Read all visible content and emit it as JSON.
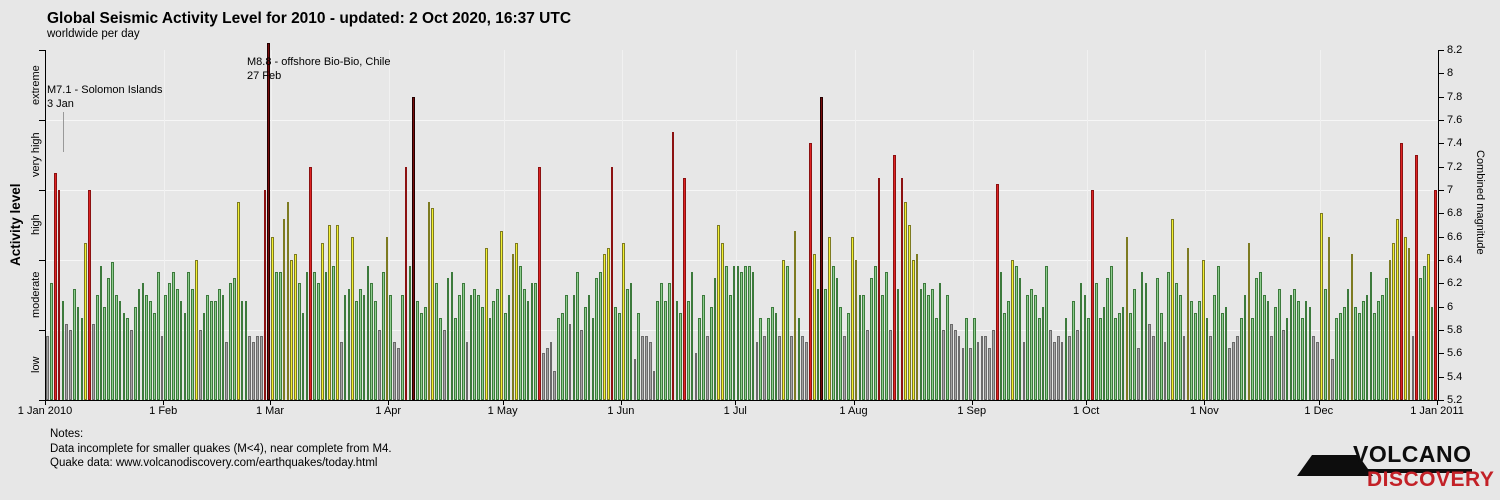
{
  "header": {
    "title": "Global Seismic Activity Level for 2010 - updated:  2 Oct 2020, 16:37 UTC",
    "subtitle": "worldwide per day"
  },
  "notes": {
    "heading": "Notes:",
    "line1": "Data incomplete for smaller quakes (M<4), near complete from M4.",
    "line2": "Quake data: www.volcanodiscovery.com/earthquakes/today.html"
  },
  "logo": {
    "line1": "VOLCANO",
    "line2": "DISCOVERY"
  },
  "chart_data": {
    "type": "bar",
    "title": "Global Seismic Activity Level for 2010",
    "subtitle": "worldwide per day",
    "x_start": "1 Jan 2010",
    "x_end": "1 Jan 2011",
    "x_tick_labels": [
      "1 Jan 2010",
      "1 Feb",
      "1 Mar",
      "1 Apr",
      "1 May",
      "1 Jun",
      "1 Jul",
      "1 Aug",
      "1 Sep",
      "1 Oct",
      "1 Nov",
      "1 Dec",
      "1 Jan 2011"
    ],
    "month_start_days": [
      1,
      32,
      60,
      91,
      121,
      152,
      182,
      213,
      244,
      274,
      305,
      335,
      366
    ],
    "y_right": {
      "label": "Combined magnitude",
      "min": 5.2,
      "max": 8.2,
      "tick_step": 0.2,
      "tick_labels": [
        "8.2",
        "8",
        "7.8",
        "7.6",
        "7.4",
        "7.2",
        "7",
        "6.8",
        "6.6",
        "6.4",
        "6.2",
        "6",
        "5.8",
        "5.6",
        "5.4",
        "5.2"
      ]
    },
    "y_left": {
      "label": "Activity level",
      "categories": [
        {
          "name": "low",
          "range": [
            5.2,
            5.8
          ],
          "color": "#a4a4a4",
          "border": "#6b6b6b"
        },
        {
          "name": "moderate",
          "range": [
            5.8,
            6.4
          ],
          "color": "#8ecd8e",
          "border": "#3c7a3c"
        },
        {
          "name": "high",
          "range": [
            6.4,
            7.0
          ],
          "color": "#f3f032",
          "border": "#7d7b22"
        },
        {
          "name": "very high",
          "range": [
            7.0,
            7.6
          ],
          "color": "#de2323",
          "border": "#8c1111"
        },
        {
          "name": "extreme",
          "range": [
            7.6,
            8.2
          ],
          "color": "#780c0c",
          "border": "#240000"
        }
      ]
    },
    "gridlines_at": [
      5.8,
      6.4,
      7.0,
      7.6
    ],
    "clip_max": 8.26,
    "days": 365,
    "values": [
      5.75,
      6.2,
      7.15,
      7.0,
      6.05,
      5.85,
      5.8,
      6.15,
      6.0,
      5.9,
      6.55,
      7.0,
      5.85,
      6.1,
      6.35,
      6.0,
      6.25,
      6.38,
      6.1,
      6.05,
      5.95,
      5.9,
      5.8,
      6.0,
      6.15,
      6.2,
      6.1,
      6.05,
      5.95,
      6.3,
      5.75,
      6.1,
      6.2,
      6.3,
      6.15,
      6.05,
      5.95,
      6.3,
      6.15,
      6.4,
      5.8,
      5.95,
      6.1,
      6.05,
      6.05,
      6.15,
      6.1,
      5.7,
      6.2,
      6.25,
      6.9,
      6.05,
      6.05,
      5.75,
      5.7,
      5.75,
      5.75,
      7.0,
      8.8,
      6.6,
      6.3,
      6.3,
      6.75,
      6.9,
      6.4,
      6.45,
      6.2,
      5.95,
      6.3,
      7.2,
      6.3,
      6.2,
      6.55,
      6.3,
      6.7,
      6.35,
      6.7,
      5.7,
      6.1,
      6.15,
      6.6,
      6.05,
      6.15,
      6.1,
      6.35,
      6.2,
      6.05,
      5.8,
      6.3,
      6.6,
      6.1,
      5.7,
      5.65,
      6.1,
      7.2,
      6.35,
      7.8,
      6.05,
      5.95,
      6.0,
      6.9,
      6.85,
      6.2,
      5.9,
      5.8,
      6.25,
      6.3,
      5.9,
      6.1,
      6.2,
      5.7,
      6.1,
      6.15,
      6.1,
      6.0,
      6.5,
      5.9,
      6.05,
      6.15,
      6.65,
      5.95,
      6.1,
      6.45,
      6.55,
      6.35,
      6.15,
      6.05,
      6.2,
      6.2,
      7.2,
      5.6,
      5.65,
      5.7,
      5.45,
      5.9,
      5.95,
      6.1,
      5.85,
      6.1,
      6.3,
      5.8,
      6.0,
      6.1,
      5.9,
      6.25,
      6.3,
      6.45,
      6.5,
      7.2,
      6.0,
      5.95,
      6.55,
      6.15,
      6.2,
      5.55,
      5.95,
      5.75,
      5.75,
      5.7,
      5.45,
      6.05,
      6.2,
      6.05,
      6.2,
      7.5,
      6.05,
      5.95,
      7.1,
      6.05,
      6.3,
      5.6,
      5.9,
      6.1,
      5.75,
      6.0,
      6.25,
      6.7,
      6.55,
      6.35,
      6.1,
      6.35,
      6.35,
      6.3,
      6.35,
      6.35,
      6.3,
      5.7,
      5.9,
      5.75,
      5.9,
      6.0,
      5.95,
      5.75,
      6.4,
      6.35,
      5.75,
      6.65,
      5.9,
      5.75,
      5.7,
      7.4,
      6.45,
      6.15,
      7.8,
      6.15,
      6.6,
      6.35,
      6.25,
      6.0,
      5.75,
      5.95,
      6.6,
      6.4,
      6.1,
      6.1,
      5.8,
      6.25,
      6.35,
      7.1,
      6.1,
      6.3,
      5.8,
      7.3,
      6.15,
      7.1,
      6.9,
      6.7,
      6.4,
      6.45,
      6.15,
      6.2,
      6.1,
      6.15,
      5.9,
      6.2,
      5.8,
      6.1,
      5.85,
      5.8,
      5.75,
      5.65,
      5.9,
      5.65,
      5.9,
      5.7,
      5.75,
      5.75,
      5.65,
      5.8,
      7.05,
      6.3,
      5.95,
      6.05,
      6.4,
      6.35,
      6.25,
      5.7,
      6.1,
      6.15,
      6.1,
      5.9,
      6.0,
      6.35,
      5.8,
      5.7,
      5.75,
      5.7,
      5.9,
      5.75,
      6.05,
      5.8,
      6.2,
      6.1,
      5.9,
      7.0,
      6.2,
      5.9,
      6.0,
      6.25,
      6.35,
      5.9,
      5.95,
      6.0,
      6.6,
      5.95,
      6.15,
      5.65,
      6.3,
      6.2,
      5.85,
      5.75,
      6.25,
      5.95,
      5.7,
      6.3,
      6.75,
      6.2,
      6.1,
      5.75,
      6.5,
      6.05,
      5.95,
      6.05,
      6.4,
      5.9,
      5.75,
      6.1,
      6.35,
      5.95,
      6.0,
      5.65,
      5.7,
      5.75,
      5.9,
      6.1,
      6.55,
      5.9,
      6.25,
      6.3,
      6.1,
      6.05,
      5.75,
      6.0,
      6.15,
      5.8,
      5.9,
      6.1,
      6.15,
      6.05,
      5.9,
      6.05,
      6.0,
      5.75,
      5.7,
      6.8,
      6.15,
      6.6,
      5.55,
      5.9,
      5.95,
      6.0,
      6.15,
      6.45,
      6.0,
      5.95,
      6.05,
      6.1,
      6.3,
      5.95,
      6.05,
      6.1,
      6.25,
      6.4,
      6.55,
      6.75,
      7.4,
      6.6,
      6.5,
      5.75,
      7.3,
      6.25,
      6.35,
      6.45,
      6.0,
      7.0
    ],
    "annotations": [
      {
        "text": "M7.1 - Solomon Islands",
        "date": "3 Jan",
        "day": 3
      },
      {
        "text": "M8.8 - offshore Bio-Bio, Chile",
        "date": "27 Feb",
        "day": 58
      }
    ]
  }
}
